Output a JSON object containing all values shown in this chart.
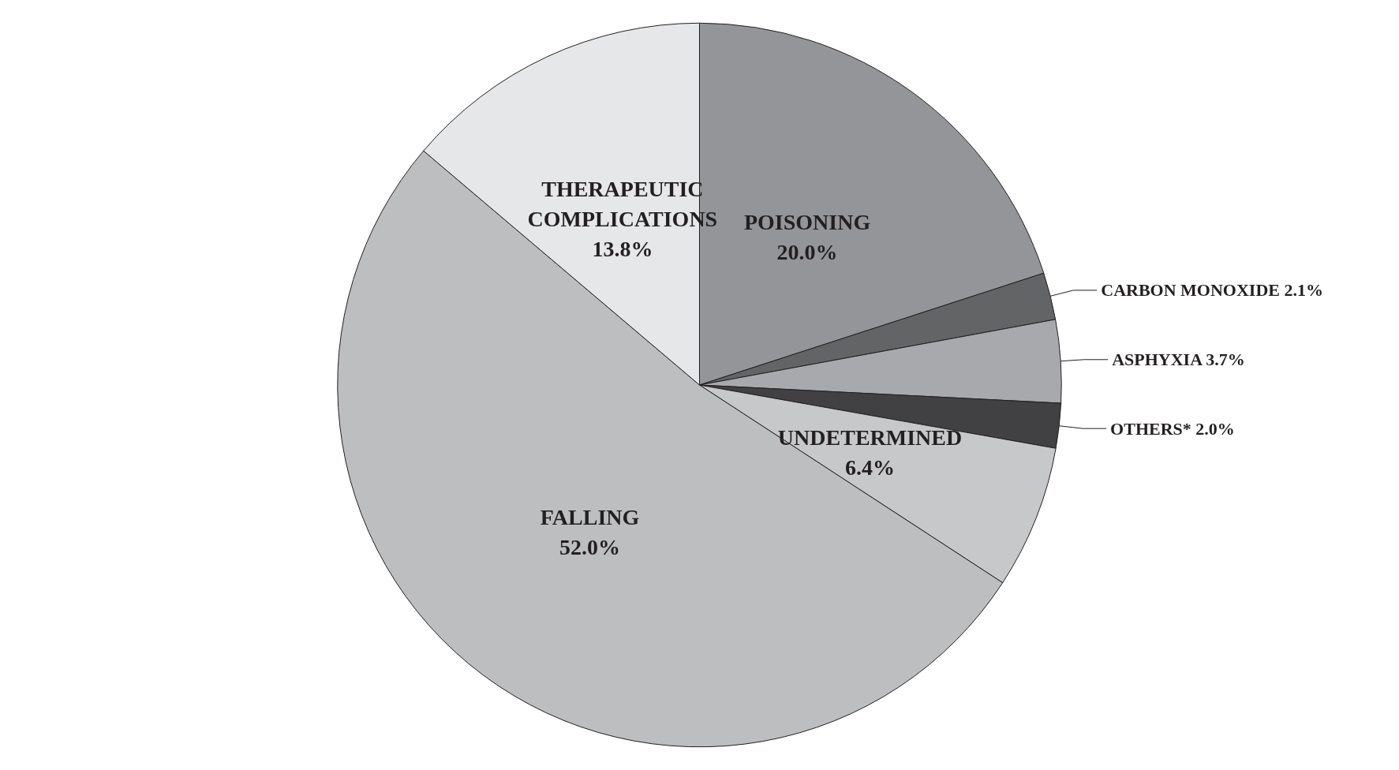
{
  "chart_data": {
    "type": "pie",
    "categories": [
      "POISONING",
      "CARBON MONOXIDE",
      "ASPHYXIA",
      "OTHERS*",
      "UNDETERMINED",
      "FALLING",
      "THERAPEUTIC COMPLICATIONS"
    ],
    "values": [
      20.0,
      2.1,
      3.7,
      2.0,
      6.4,
      52.0,
      13.8
    ],
    "value_labels": [
      "20.0%",
      "2.1%",
      "3.7%",
      "2.0%",
      "6.4%",
      "52.0%",
      "13.8%"
    ],
    "colors": [
      "#939598",
      "#636466",
      "#a7a9ac",
      "#414042",
      "#c7c8ca",
      "#bcbec0",
      "#e6e7e8"
    ]
  }
}
